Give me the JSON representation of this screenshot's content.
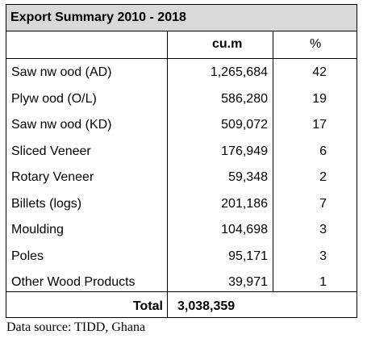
{
  "table": {
    "title": "Export Summary 2010 - 2018",
    "header": {
      "unit": "cu.m",
      "percent": "%"
    },
    "rows": [
      {
        "product": "Saw nw ood (AD)",
        "volume": "1,265,684",
        "percent": "42"
      },
      {
        "product": "Plyw ood (O/L)",
        "volume": "586,280",
        "percent": "19"
      },
      {
        "product": "Saw nw ood (KD)",
        "volume": "509,072",
        "percent": "17"
      },
      {
        "product": "Sliced Veneer",
        "volume": "176,949",
        "percent": "6"
      },
      {
        "product": "Rotary Veneer",
        "volume": "59,348",
        "percent": "2"
      },
      {
        "product": "Billets (logs)",
        "volume": "201,186",
        "percent": "7"
      },
      {
        "product": "Moulding",
        "volume": "104,698",
        "percent": "3"
      },
      {
        "product": "Poles",
        "volume": "95,171",
        "percent": "3"
      },
      {
        "product": "Other Wood Products",
        "volume": "39,971",
        "percent": "1"
      }
    ],
    "total": {
      "label": "Total",
      "volume": "3,038,359"
    }
  },
  "caption": "Data source: TIDD, Ghana"
}
